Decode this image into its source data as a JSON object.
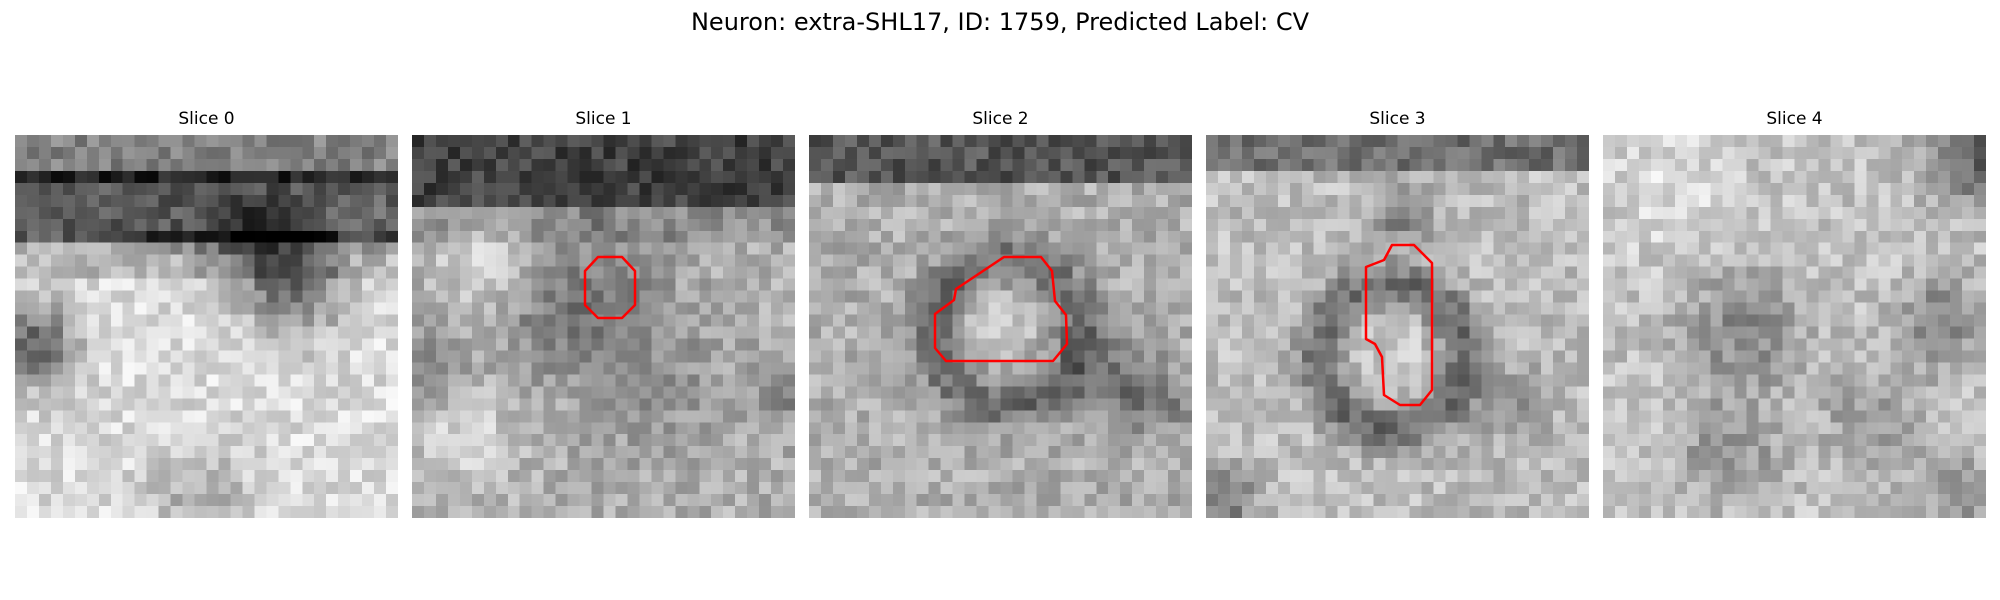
{
  "figure": {
    "title": "Neuron: extra-SHL17, ID: 1759, Predicted Label: CV"
  },
  "panels": [
    {
      "title": "Slice 0",
      "has_contour": false,
      "contour_color": "#ff0000",
      "image": "grayscale EM micrograph slice"
    },
    {
      "title": "Slice 1",
      "has_contour": true,
      "contour_color": "#ff0000",
      "image": "grayscale EM micrograph slice"
    },
    {
      "title": "Slice 2",
      "has_contour": true,
      "contour_color": "#ff0000",
      "image": "grayscale EM micrograph slice"
    },
    {
      "title": "Slice 3",
      "has_contour": true,
      "contour_color": "#ff0000",
      "image": "grayscale EM micrograph slice"
    },
    {
      "title": "Slice 4",
      "has_contour": false,
      "contour_color": "#ff0000",
      "image": "grayscale EM micrograph slice"
    }
  ]
}
